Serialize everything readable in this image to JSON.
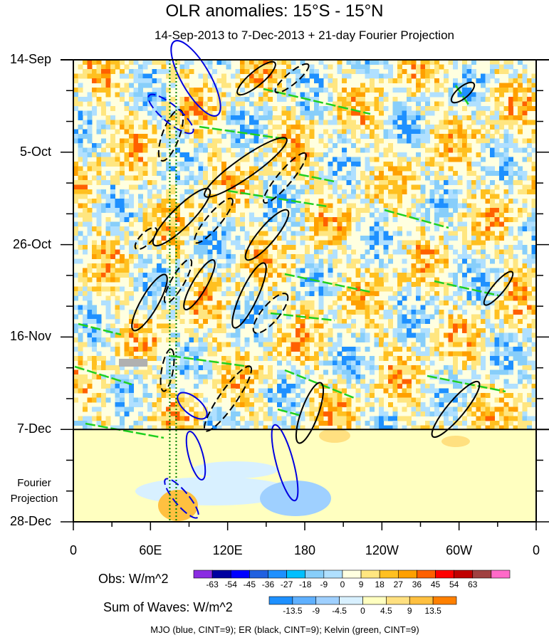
{
  "chart_data": {
    "type": "heatmap",
    "title": "OLR anomalies: 15°S - 15°N",
    "subtitle": "14-Sep-2013 to 7-Dec-2013 + 21-day Fourier Projection",
    "x_ticks": [
      "0",
      "60E",
      "120E",
      "180",
      "120W",
      "60W",
      "0"
    ],
    "x_values": [
      0,
      60,
      120,
      180,
      240,
      300,
      360
    ],
    "y_ticks": [
      "14-Sep",
      "5-Oct",
      "26-Oct",
      "16-Nov",
      "7-Dec",
      "28-Dec"
    ],
    "y_days": [
      0,
      21,
      42,
      63,
      84,
      105
    ],
    "observation_end": "7-Dec",
    "projection_label": "Fourier\nProjection",
    "obs_colorbar": {
      "label": "Obs: W/m^2",
      "levels": [
        "-63",
        "-54",
        "-45",
        "-36",
        "-27",
        "-18",
        "-9",
        "0",
        "9",
        "18",
        "27",
        "36",
        "45",
        "54",
        "63"
      ],
      "colors": [
        "#8a2be2",
        "#0000a0",
        "#0000ff",
        "#2060e0",
        "#1e90ff",
        "#00bfff",
        "#87cefa",
        "#b0e0ff",
        "#ffffe0",
        "#ffe680",
        "#ffc020",
        "#ffa000",
        "#ff6000",
        "#ff0000",
        "#c00000",
        "#a04040",
        "#ff69c8"
      ]
    },
    "waves_colorbar": {
      "label": "Sum of Waves: W/m^2",
      "levels": [
        "-13.5",
        "-9",
        "-4.5",
        "0",
        "4.5",
        "9",
        "13.5"
      ],
      "colors": [
        "#1e90ff",
        "#5fb0ff",
        "#9fd0ff",
        "#d8f0ff",
        "#ffffc0",
        "#ffe080",
        "#ffc040",
        "#ff8000"
      ]
    },
    "footer": "MJO (blue, CINT=9); ER (black, CINT=9); Kelvin (green, CINT=9)"
  },
  "colors": {
    "mjo": "#0000e0",
    "er": "#000000",
    "kelvin": "#20d020",
    "reference_lines": "#008000"
  }
}
